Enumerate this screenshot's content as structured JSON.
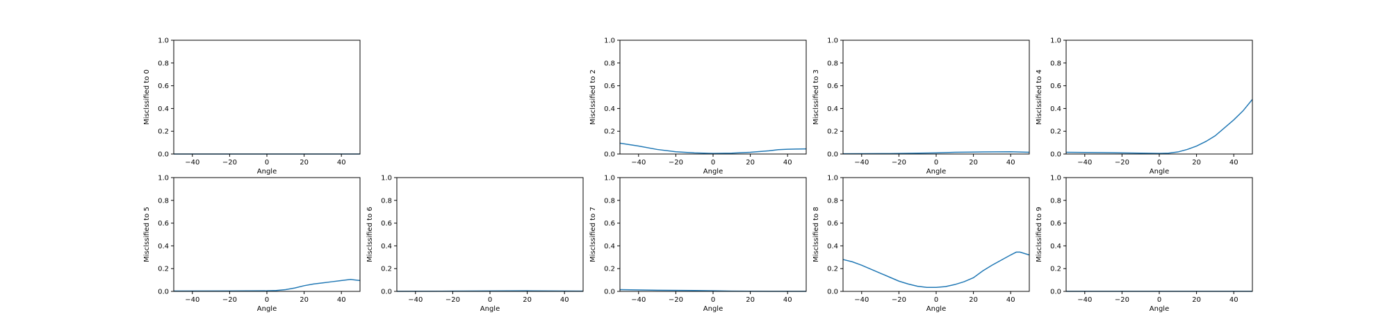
{
  "chart_data": [
    {
      "type": "line",
      "xlabel": "Angle",
      "ylabel": "Misclssified to 0",
      "xlim": [
        -50,
        50
      ],
      "ylim": [
        0,
        1
      ],
      "xticks": [
        "-40",
        "-20",
        "0",
        "20",
        "40"
      ],
      "yticks": [
        "0.0",
        "0.2",
        "0.4",
        "0.6",
        "0.8",
        "1.0"
      ],
      "series": [
        {
          "color": "#1f77b4",
          "x": [
            -50,
            -25,
            0,
            25,
            50
          ],
          "y": [
            0,
            0,
            0,
            0,
            0
          ]
        }
      ]
    },
    {
      "type": "line",
      "xlabel": "Angle",
      "ylabel": "Misclssified to 2",
      "xlim": [
        -50,
        50
      ],
      "ylim": [
        0,
        1
      ],
      "xticks": [
        "-40",
        "-20",
        "0",
        "20",
        "40"
      ],
      "yticks": [
        "0.0",
        "0.2",
        "0.4",
        "0.6",
        "0.8",
        "1.0"
      ],
      "series": [
        {
          "color": "#1f77b4",
          "x": [
            -50,
            -40,
            -30,
            -20,
            -10,
            0,
            10,
            20,
            30,
            35,
            40,
            50
          ],
          "y": [
            0.095,
            0.07,
            0.04,
            0.02,
            0.01,
            0.005,
            0.008,
            0.015,
            0.028,
            0.038,
            0.042,
            0.045
          ]
        }
      ]
    },
    {
      "type": "line",
      "xlabel": "Angle",
      "ylabel": "Misclssified to 3",
      "xlim": [
        -50,
        50
      ],
      "ylim": [
        0,
        1
      ],
      "xticks": [
        "-40",
        "-20",
        "0",
        "20",
        "40"
      ],
      "yticks": [
        "0.0",
        "0.2",
        "0.4",
        "0.6",
        "0.8",
        "1.0"
      ],
      "series": [
        {
          "color": "#1f77b4",
          "x": [
            -50,
            -25,
            0,
            10,
            25,
            40,
            50
          ],
          "y": [
            0.002,
            0.004,
            0.01,
            0.015,
            0.018,
            0.02,
            0.015
          ]
        }
      ]
    },
    {
      "type": "line",
      "xlabel": "Angle",
      "ylabel": "Misclssified to 4",
      "xlim": [
        -50,
        50
      ],
      "ylim": [
        0,
        1
      ],
      "xticks": [
        "-40",
        "-20",
        "0",
        "20",
        "40"
      ],
      "yticks": [
        "0.0",
        "0.2",
        "0.4",
        "0.6",
        "0.8",
        "1.0"
      ],
      "series": [
        {
          "color": "#1f77b4",
          "x": [
            -50,
            -30,
            -10,
            0,
            5,
            10,
            15,
            20,
            25,
            30,
            35,
            40,
            45,
            50
          ],
          "y": [
            0.015,
            0.012,
            0.008,
            0.005,
            0.008,
            0.018,
            0.04,
            0.07,
            0.11,
            0.16,
            0.23,
            0.3,
            0.38,
            0.48
          ]
        }
      ]
    },
    {
      "type": "line",
      "xlabel": "Angle",
      "ylabel": "Misclssified to 5",
      "xlim": [
        -50,
        50
      ],
      "ylim": [
        0,
        1
      ],
      "xticks": [
        "-40",
        "-20",
        "0",
        "20",
        "40"
      ],
      "yticks": [
        "0.0",
        "0.2",
        "0.4",
        "0.6",
        "0.8",
        "1.0"
      ],
      "series": [
        {
          "color": "#1f77b4",
          "x": [
            -50,
            -20,
            0,
            5,
            10,
            15,
            20,
            25,
            30,
            35,
            40,
            45,
            50
          ],
          "y": [
            0.003,
            0.004,
            0.005,
            0.008,
            0.015,
            0.03,
            0.05,
            0.065,
            0.075,
            0.085,
            0.095,
            0.105,
            0.095
          ]
        }
      ]
    },
    {
      "type": "line",
      "xlabel": "Angle",
      "ylabel": "Misclssified to 6",
      "xlim": [
        -50,
        50
      ],
      "ylim": [
        0,
        1
      ],
      "xticks": [
        "-40",
        "-20",
        "0",
        "20",
        "40"
      ],
      "yticks": [
        "0.0",
        "0.2",
        "0.4",
        "0.6",
        "0.8",
        "1.0"
      ],
      "series": [
        {
          "color": "#1f77b4",
          "x": [
            -50,
            -20,
            0,
            20,
            40,
            50
          ],
          "y": [
            0.001,
            0.002,
            0.004,
            0.005,
            0.003,
            0.002
          ]
        }
      ]
    },
    {
      "type": "line",
      "xlabel": "Angle",
      "ylabel": "Misclssified to 7",
      "xlim": [
        -50,
        50
      ],
      "ylim": [
        0,
        1
      ],
      "xticks": [
        "-40",
        "-20",
        "0",
        "20",
        "40"
      ],
      "yticks": [
        "0.0",
        "0.2",
        "0.4",
        "0.6",
        "0.8",
        "1.0"
      ],
      "series": [
        {
          "color": "#1f77b4",
          "x": [
            -50,
            -30,
            -10,
            0,
            10,
            30,
            50
          ],
          "y": [
            0.015,
            0.01,
            0.008,
            0.005,
            0.002,
            0.001,
            0.001
          ]
        }
      ]
    },
    {
      "type": "line",
      "xlabel": "Angle",
      "ylabel": "Misclssified to 8",
      "xlim": [
        -50,
        50
      ],
      "ylim": [
        0,
        1
      ],
      "xticks": [
        "-40",
        "-20",
        "0",
        "20",
        "40"
      ],
      "yticks": [
        "0.0",
        "0.2",
        "0.4",
        "0.6",
        "0.8",
        "1.0"
      ],
      "series": [
        {
          "color": "#1f77b4",
          "x": [
            -50,
            -45,
            -40,
            -35,
            -30,
            -25,
            -20,
            -15,
            -10,
            -5,
            0,
            5,
            10,
            15,
            20,
            25,
            30,
            35,
            40,
            43,
            45,
            48,
            50
          ],
          "y": [
            0.28,
            0.26,
            0.23,
            0.195,
            0.16,
            0.125,
            0.09,
            0.065,
            0.045,
            0.035,
            0.035,
            0.042,
            0.06,
            0.085,
            0.12,
            0.18,
            0.23,
            0.275,
            0.32,
            0.345,
            0.345,
            0.33,
            0.32
          ]
        }
      ]
    },
    {
      "type": "line",
      "xlabel": "Angle",
      "ylabel": "Misclssified to 9",
      "xlim": [
        -50,
        50
      ],
      "ylim": [
        0,
        1
      ],
      "xticks": [
        "-40",
        "-20",
        "0",
        "20",
        "40"
      ],
      "yticks": [
        "0.0",
        "0.2",
        "0.4",
        "0.6",
        "0.8",
        "1.0"
      ],
      "series": [
        {
          "color": "#1f77b4",
          "x": [
            -50,
            -25,
            0,
            25,
            50
          ],
          "y": [
            0.001,
            0.001,
            0.001,
            0.001,
            0.001
          ]
        }
      ]
    }
  ]
}
